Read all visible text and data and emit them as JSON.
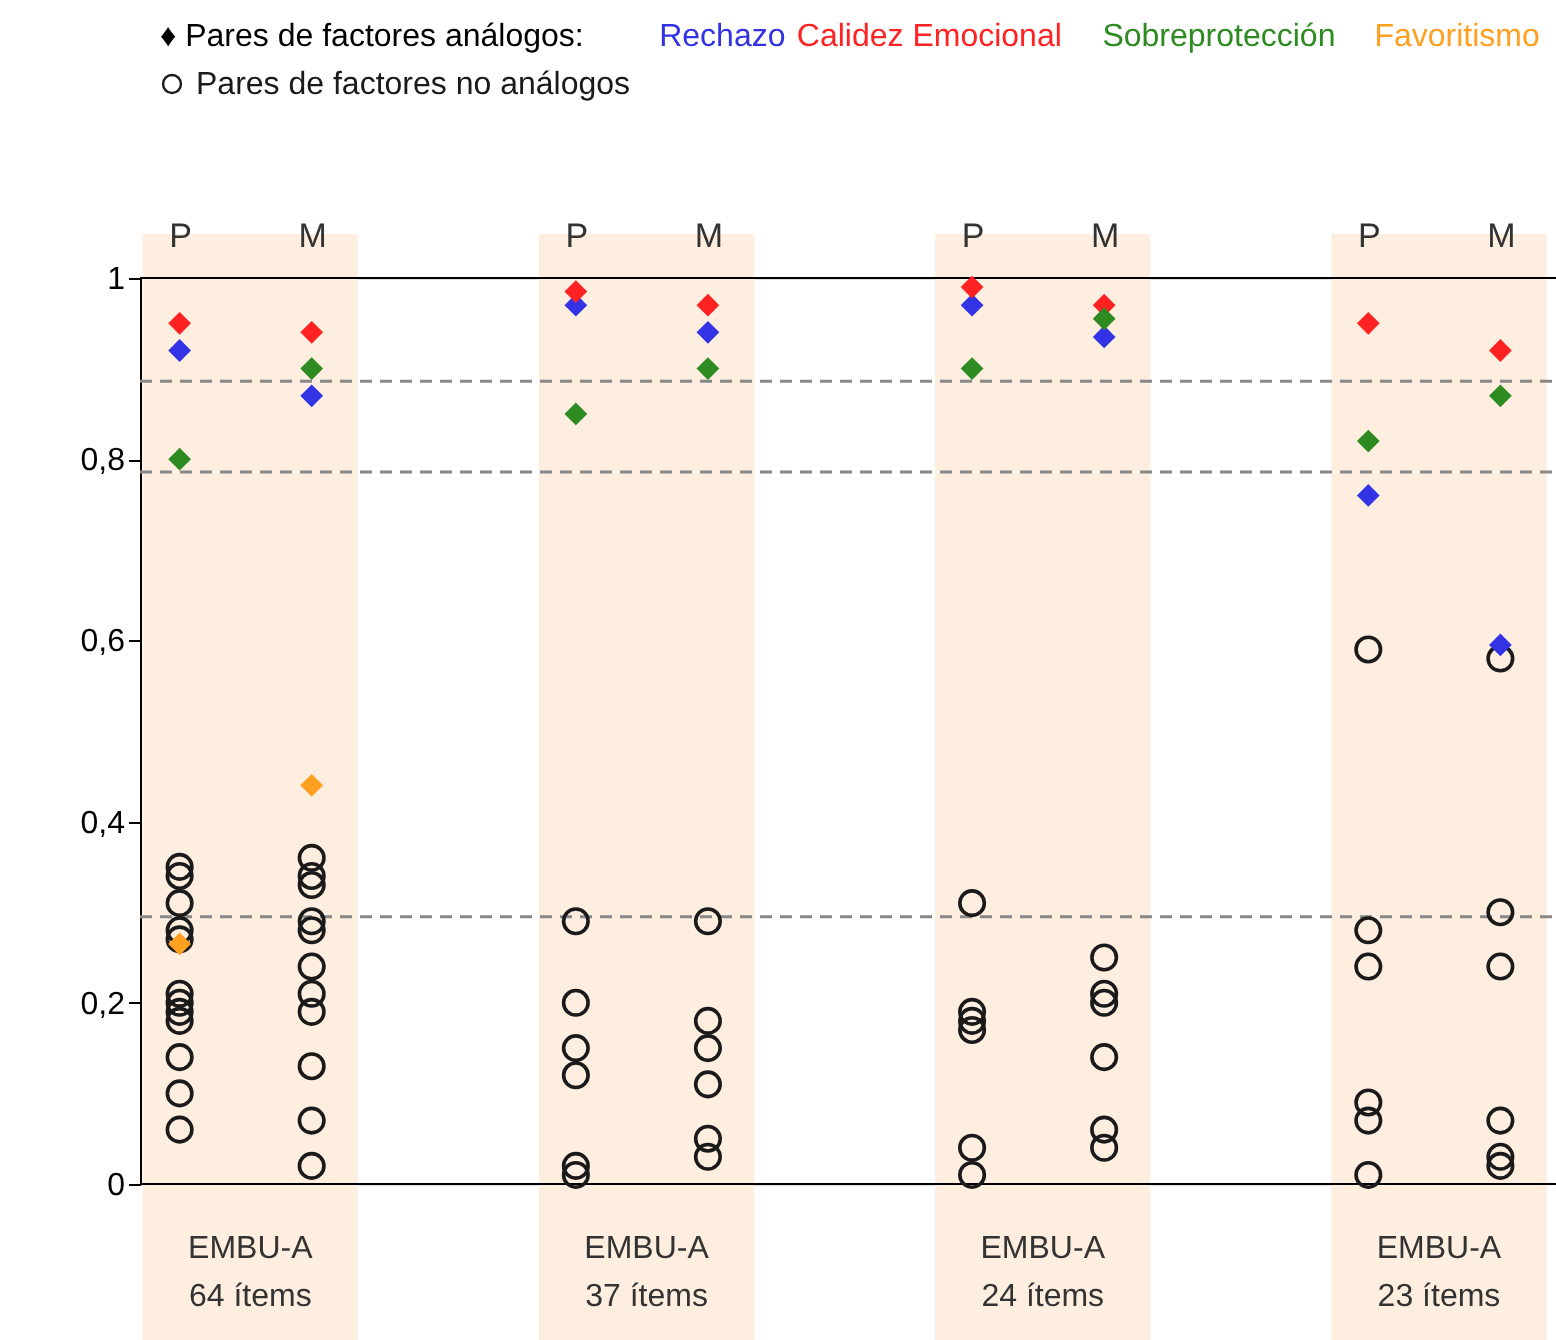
{
  "chart_data": {
    "type": "scatter",
    "legend_title": "♦ Pares de factores análogos:",
    "legend": "top left",
    "grid": false,
    "categories": [
      "P",
      "M",
      null,
      "P",
      "M",
      null,
      "P",
      "M",
      null,
      "P",
      "M"
    ],
    "ylim": [
      0,
      1
    ],
    "yticks": [
      0,
      {
        "value": 0.2,
        "label": "0,2"
      },
      {
        "value": 0.4,
        "label": "0,4"
      },
      {
        "value": 0.6,
        "label": "0,6"
      },
      {
        "value": 0.8,
        "label": "0,8"
      },
      1
    ],
    "series": [
      {
        "name": "Rechazo",
        "color": "#3333e6",
        "marker": "diamond",
        "values": [
          0.92,
          0.87,
          null,
          0.97,
          0.94,
          null,
          0.97,
          0.935,
          null,
          0.76,
          0.595
        ]
      },
      {
        "name": "Calidez Emocional",
        "color": "#ff2222",
        "marker": "diamond",
        "values": [
          0.95,
          0.94,
          null,
          0.985,
          0.97,
          null,
          0.99,
          0.97,
          null,
          0.95,
          0.92
        ]
      },
      {
        "name": "Sobreprotección",
        "color": "#2e8b22",
        "marker": "diamond",
        "values": [
          0.8,
          0.9,
          null,
          0.85,
          0.9,
          null,
          0.9,
          0.955,
          null,
          0.82,
          0.87
        ]
      },
      {
        "name": "Favoritismo",
        "color": "#ffa020",
        "marker": "diamond",
        "values": [
          0.265,
          0.44,
          null,
          null,
          null,
          null,
          null,
          null,
          null,
          null,
          null
        ]
      },
      {
        "name": "Pares de factores no análogos",
        "color": "#1a1a1a",
        "marker": "circle",
        "values": [
          0.35,
          0.36,
          null,
          0.29,
          0.29,
          null,
          0.31,
          0.25,
          null,
          0.59,
          0.58
        ]
      },
      {
        "color": "#1a1a1a",
        "marker": "circle",
        "values": [
          0.34,
          0.34,
          null,
          0.2,
          0.18,
          null,
          0.19,
          0.21,
          null,
          0.28,
          0.3
        ]
      },
      {
        "color": "#1a1a1a",
        "marker": "circle",
        "values": [
          0.31,
          0.33,
          null,
          0.15,
          0.15,
          null,
          0.18,
          0.2,
          null,
          0.24,
          0.24
        ]
      },
      {
        "color": "#1a1a1a",
        "marker": "circle",
        "values": [
          0.28,
          0.29,
          null,
          0.12,
          0.11,
          null,
          0.17,
          0.14,
          null,
          0.09,
          0.07
        ]
      },
      {
        "color": "#1a1a1a",
        "marker": "circle",
        "values": [
          0.27,
          0.28,
          null,
          0.02,
          0.05,
          null,
          0.04,
          0.06,
          null,
          0.07,
          0.03
        ]
      },
      {
        "color": "#1a1a1a",
        "marker": "circle",
        "values": [
          0.21,
          0.24,
          null,
          0.01,
          0.03,
          null,
          0.01,
          0.04,
          null,
          0.01,
          0.02
        ]
      },
      {
        "color": "#1a1a1a",
        "marker": "circle",
        "values": [
          0.2,
          0.21,
          null,
          null,
          null,
          null,
          null,
          null,
          null,
          null,
          null
        ]
      },
      {
        "color": "#1a1a1a",
        "marker": "circle",
        "values": [
          0.19,
          0.19,
          null,
          null,
          null,
          null,
          null,
          null,
          null,
          null,
          null
        ]
      },
      {
        "color": "#1a1a1a",
        "marker": "circle",
        "values": [
          0.18,
          0.13,
          null,
          null,
          null,
          null,
          null,
          null,
          null,
          null,
          null
        ]
      },
      {
        "color": "#1a1a1a",
        "marker": "circle",
        "values": [
          0.14,
          0.07,
          null,
          null,
          null,
          null,
          null,
          null,
          null,
          null,
          null
        ]
      },
      {
        "color": "#1a1a1a",
        "marker": "circle",
        "values": [
          0.1,
          0.02,
          null,
          null,
          null,
          null,
          null,
          null,
          null,
          null,
          null
        ]
      },
      {
        "color": "#1a1a1a",
        "marker": "circle",
        "values": [
          0.06,
          null,
          null,
          null,
          null,
          null,
          null,
          null,
          null,
          null,
          null
        ]
      }
    ],
    "ref_lines": [
      {
        "axis": "y",
        "value": 0.886,
        "color": "#888888",
        "line_style": "dashed"
      },
      {
        "axis": "y",
        "value": 0.786,
        "color": "#888888",
        "line_style": "dashed"
      },
      {
        "axis": "y",
        "value": 0.295,
        "color": "#888888",
        "line_style": "dashed"
      }
    ],
    "annotations": [
      "EMBU-A\n64 ítems",
      "EMBU-A\n37 ítems",
      "EMBU-A\n24 ítems",
      "EMBU-A\n23 ítems"
    ]
  }
}
